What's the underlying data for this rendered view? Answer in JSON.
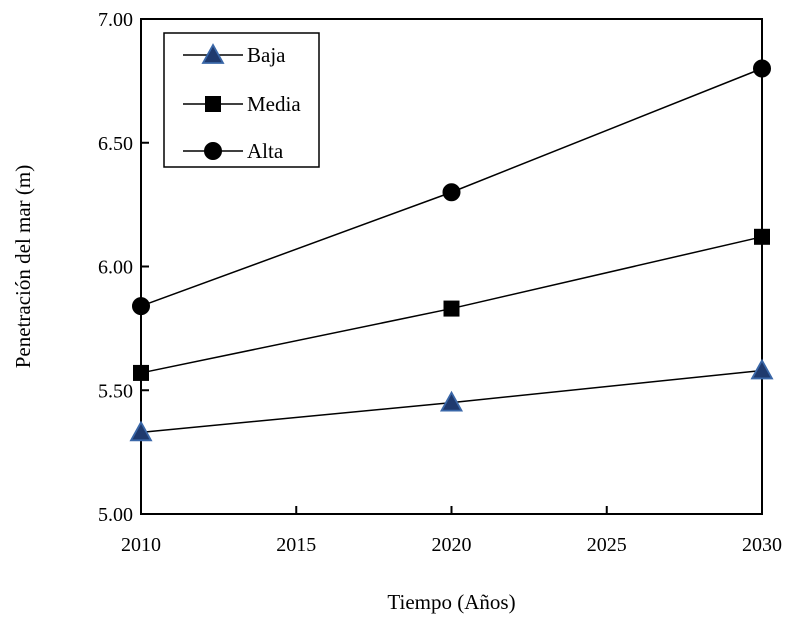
{
  "chart_data": {
    "type": "line",
    "title": "",
    "xlabel": "Tiempo (Años)",
    "ylabel": "Penetración del mar (m)",
    "xlim": [
      2010,
      2030
    ],
    "ylim": [
      5.0,
      7.0
    ],
    "xticks": [
      2010,
      2015,
      2020,
      2025,
      2030
    ],
    "yticks": [
      "5.00",
      "5.50",
      "6.00",
      "6.50",
      "7.00"
    ],
    "grid": false,
    "legend_position": "top-left",
    "x": [
      2010,
      2020,
      2030
    ],
    "series": [
      {
        "name": "Baja",
        "marker": "triangle",
        "values": [
          5.33,
          5.45,
          5.58
        ],
        "color": "#000000",
        "marker_fill": "#1f3a6e"
      },
      {
        "name": "Media",
        "marker": "square",
        "values": [
          5.57,
          5.83,
          6.12
        ],
        "color": "#000000",
        "marker_fill": "#000000"
      },
      {
        "name": "Alta",
        "marker": "circle",
        "values": [
          5.84,
          6.3,
          6.8
        ],
        "color": "#000000",
        "marker_fill": "#000000"
      }
    ]
  }
}
